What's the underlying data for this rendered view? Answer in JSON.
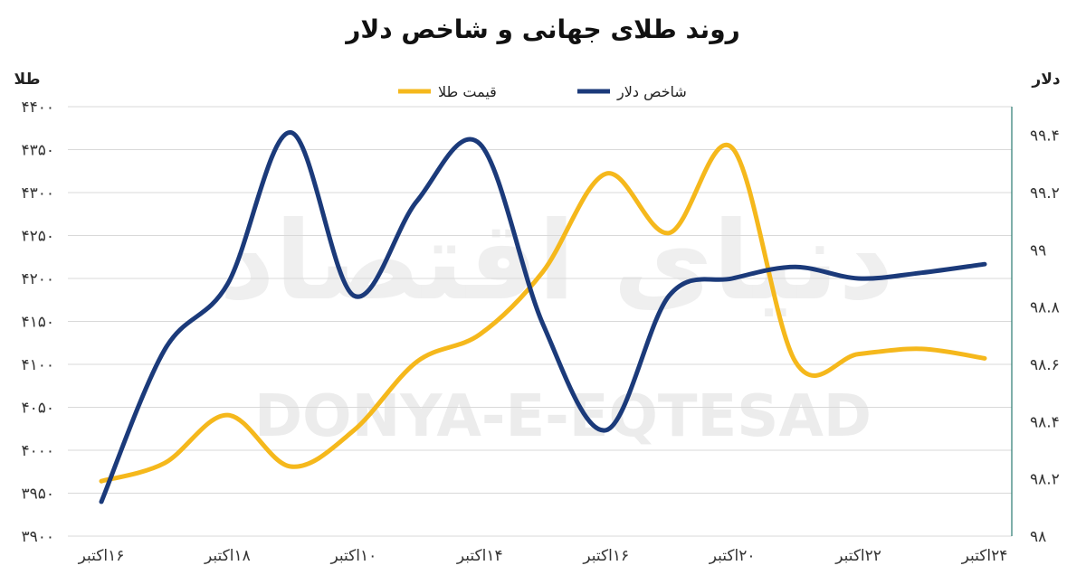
{
  "chart_data": {
    "type": "line",
    "title": "روند طلای جهانی و شاخص دلار",
    "left_axis_label": "طلا",
    "right_axis_label": "دلار",
    "left_ylim": [
      3900,
      4400
    ],
    "left_ticks": [
      "۳۹۰۰",
      "۳۹۵۰",
      "۴۰۰۰",
      "۴۰۵۰",
      "۴۱۰۰",
      "۴۱۵۰",
      "۴۲۰۰",
      "۴۲۵۰",
      "۴۳۰۰",
      "۴۳۵۰",
      "۴۴۰۰"
    ],
    "right_ylim": [
      98.0,
      99.5
    ],
    "right_ticks": [
      "۹۸",
      "۹۸.۲",
      "۹۸.۴",
      "۹۸.۶",
      "۹۸.۸",
      "۹۹",
      "۹۹.۲",
      "۹۹.۴"
    ],
    "x_labels": [
      "۱۶اکتبر",
      "۱۸اکتبر",
      "۱۰اکتبر",
      "۱۴اکتبر",
      "۱۶اکتبر",
      "۲۰اکتبر",
      "۲۲اکتبر",
      "۲۴اکتبر"
    ],
    "x": [
      0,
      1,
      2,
      3,
      4,
      5,
      6,
      7,
      8,
      9,
      10,
      11,
      12,
      13,
      14
    ],
    "grid": true,
    "legend_position": "top-center",
    "series": [
      {
        "name": "شاخص دلار",
        "axis": "right",
        "color": "#1b3a7a",
        "values": [
          98.12,
          98.65,
          98.88,
          99.41,
          98.84,
          99.17,
          99.37,
          98.74,
          98.37,
          98.84,
          98.9,
          98.94,
          98.9,
          98.92,
          98.95
        ]
      },
      {
        "name": "قیمت طلا",
        "axis": "left",
        "color": "#f5b81c",
        "values": [
          3964,
          3985,
          4041,
          3981,
          4023,
          4103,
          4135,
          4208,
          4322,
          4253,
          4352,
          4103,
          4112,
          4118,
          4107
        ]
      }
    ]
  },
  "watermark": {
    "latin": "DONYA-E-EQTESAD",
    "persian": "دنیای اقتصاد"
  }
}
